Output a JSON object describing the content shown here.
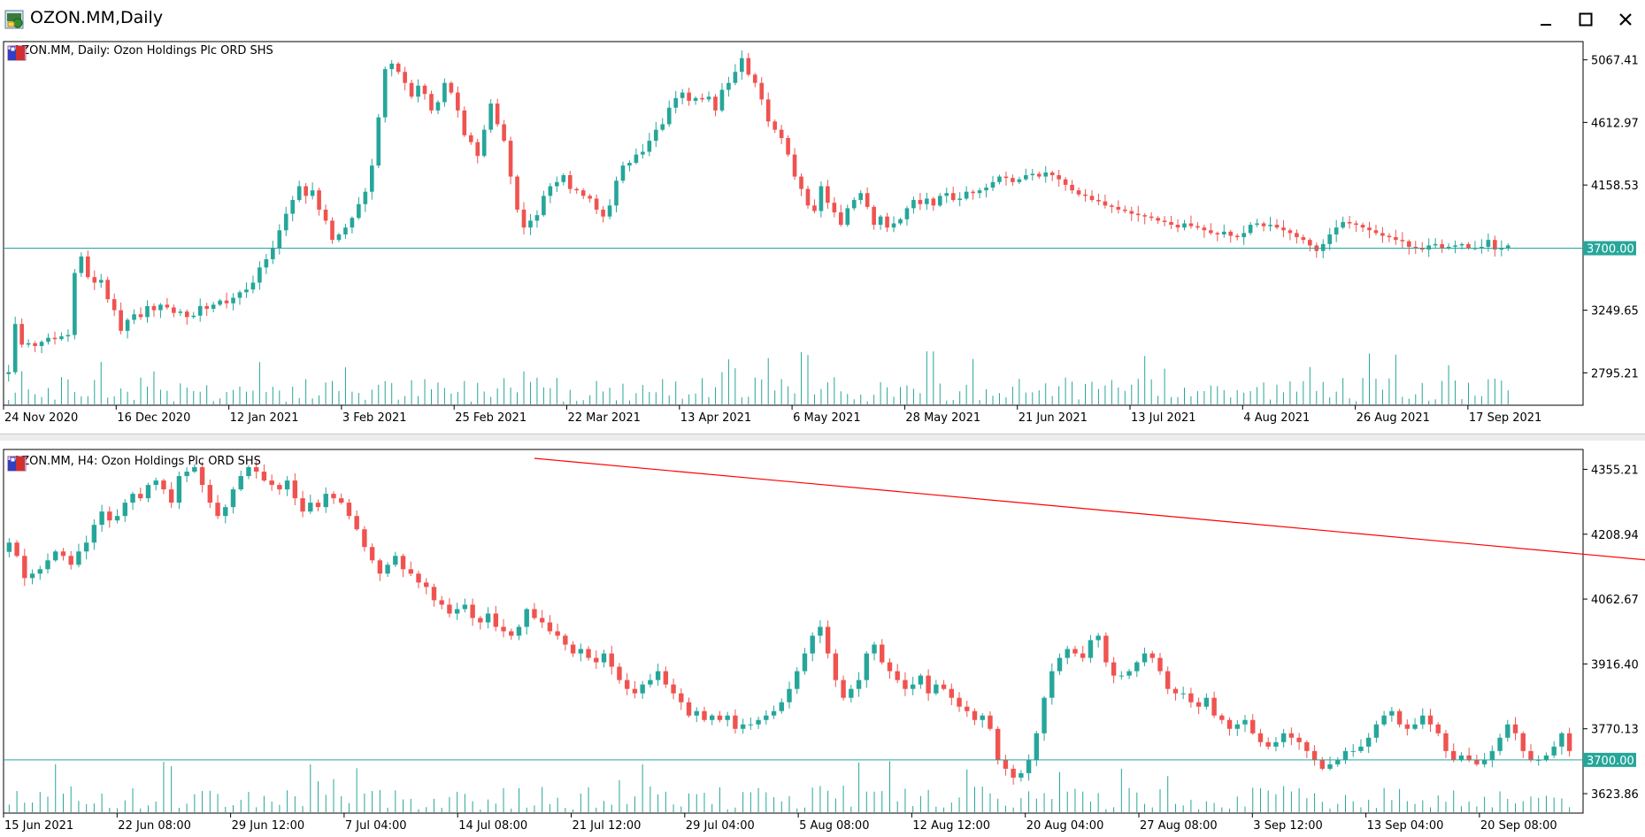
{
  "window": {
    "title": "OZON.MM,Daily",
    "icon": "terminal-chart-icon",
    "buttons": [
      {
        "name": "minimize-button",
        "label": "▁",
        "icon": "minimize-icon"
      },
      {
        "name": "maximize-button",
        "label": "☐",
        "icon": "maximize-icon"
      },
      {
        "name": "close-button",
        "label": "✕",
        "icon": "close-icon"
      }
    ]
  },
  "colors": {
    "bull": "#26a69a",
    "bear": "#ef5350",
    "hline": "#26a69a",
    "trendline": "#ff0000",
    "volume": "#26a69a",
    "price_tag_bg": "#26a69a"
  },
  "daily": {
    "label": "OZON.MM, Daily:  Ozon Holdings Plc ORD SHS",
    "price_ticks": [
      "5067.41",
      "4612.97",
      "4158.53",
      "3249.65",
      "2795.21"
    ],
    "hline_label": "3700.00",
    "date_labels": [
      "24 Nov 2020",
      "16 Dec 2020",
      "12 Jan 2021",
      "3 Feb 2021",
      "25 Feb 2021",
      "22 Mar 2021",
      "13 Apr 2021",
      "6 May 2021",
      "28 May 2021",
      "21 Jun 2021",
      "13 Jul 2021",
      "4 Aug 2021",
      "26 Aug 2021",
      "17 Sep 2021"
    ]
  },
  "h4": {
    "label": "OZON.MM, H4:  Ozon Holdings Plc ORD SHS",
    "price_ticks": [
      "4355.21",
      "4208.94",
      "4062.67",
      "3916.40",
      "3770.13",
      "3623.86"
    ],
    "hline_label": "3700.00",
    "date_labels": [
      "15 Jun 2021",
      "22 Jun 08:00",
      "29 Jun 12:00",
      "7 Jul 04:00",
      "14 Jul 08:00",
      "21 Jul 12:00",
      "29 Jul 04:00",
      "5 Aug 08:00",
      "12 Aug 12:00",
      "20 Aug 04:00",
      "27 Aug 08:00",
      "3 Sep 12:00",
      "13 Sep 04:00",
      "20 Sep 08:00"
    ]
  },
  "chart_data": [
    {
      "type": "candlestick",
      "title": "OZON.MM, Daily:  Ozon Holdings Plc ORD SHS",
      "ylim": [
        2560,
        5200
      ],
      "hline": 3700,
      "closes": [
        2800,
        3150,
        3000,
        3010,
        2990,
        3020,
        3050,
        3040,
        3060,
        3070,
        3520,
        3640,
        3490,
        3450,
        3470,
        3330,
        3250,
        3100,
        3180,
        3220,
        3200,
        3280,
        3250,
        3290,
        3270,
        3230,
        3240,
        3200,
        3210,
        3280,
        3260,
        3290,
        3320,
        3300,
        3340,
        3380,
        3400,
        3450,
        3560,
        3620,
        3700,
        3830,
        3950,
        4050,
        4150,
        4080,
        4120,
        3980,
        3900,
        3760,
        3800,
        3850,
        3920,
        4020,
        4110,
        4300,
        4650,
        5000,
        5040,
        4980,
        4900,
        4800,
        4880,
        4820,
        4700,
        4760,
        4900,
        4830,
        4700,
        4520,
        4470,
        4370,
        4560,
        4750,
        4600,
        4480,
        4220,
        3980,
        3850,
        3900,
        3940,
        4080,
        4150,
        4180,
        4230,
        4130,
        4120,
        4080,
        4060,
        3980,
        3930,
        4010,
        4190,
        4300,
        4320,
        4380,
        4400,
        4480,
        4560,
        4600,
        4720,
        4790,
        4830,
        4770,
        4790,
        4780,
        4800,
        4700,
        4850,
        4900,
        4980,
        5080,
        4960,
        4900,
        4780,
        4620,
        4560,
        4500,
        4380,
        4220,
        4130,
        4010,
        3970,
        4150,
        4030,
        3960,
        3870,
        3990,
        4050,
        4100,
        4000,
        3870,
        3930,
        3850,
        3880,
        3910,
        3990,
        4050,
        4020,
        4060,
        4010,
        4080,
        4100,
        4050,
        4060,
        4110,
        4100,
        4120,
        4140,
        4180,
        4220,
        4210,
        4180,
        4200,
        4230,
        4240,
        4220,
        4250,
        4230,
        4200,
        4160,
        4120,
        4090,
        4080,
        4050,
        4040,
        4010,
        4000,
        3980,
        3970,
        3950,
        3940,
        3930,
        3920,
        3900,
        3890,
        3870,
        3850,
        3880,
        3860,
        3850,
        3830,
        3810,
        3800,
        3820,
        3790,
        3780,
        3810,
        3870,
        3880,
        3860,
        3870,
        3850,
        3830,
        3810,
        3780,
        3760,
        3720,
        3680,
        3730,
        3800,
        3850,
        3890,
        3880,
        3870,
        3850,
        3830,
        3810,
        3790,
        3780,
        3760,
        3750,
        3710,
        3700,
        3690,
        3720,
        3730,
        3700,
        3710,
        3720,
        3730,
        3700,
        3700,
        3710,
        3760,
        3690,
        3700,
        3720
      ]
    },
    {
      "type": "candlestick",
      "title": "OZON.MM, H4:  Ozon Holdings Plc ORD SHS",
      "ylim": [
        3580,
        4400
      ],
      "hline": 3700,
      "trendline": {
        "from_bar": 68,
        "from_value": 4380,
        "to_bar": 445,
        "to_value": 3780
      },
      "closes": [
        4190,
        4160,
        4110,
        4120,
        4130,
        4150,
        4170,
        4160,
        4140,
        4170,
        4190,
        4230,
        4260,
        4240,
        4250,
        4280,
        4300,
        4290,
        4320,
        4330,
        4310,
        4280,
        4340,
        4350,
        4360,
        4320,
        4280,
        4250,
        4270,
        4310,
        4340,
        4360,
        4350,
        4330,
        4320,
        4310,
        4330,
        4290,
        4260,
        4280,
        4270,
        4300,
        4290,
        4280,
        4250,
        4220,
        4180,
        4150,
        4120,
        4140,
        4160,
        4130,
        4120,
        4100,
        4090,
        4060,
        4050,
        4030,
        4040,
        4050,
        4020,
        4010,
        4030,
        4000,
        3990,
        3980,
        4000,
        4040,
        4020,
        4010,
        3990,
        3980,
        3960,
        3940,
        3950,
        3930,
        3920,
        3940,
        3910,
        3880,
        3860,
        3850,
        3870,
        3880,
        3900,
        3870,
        3850,
        3830,
        3800,
        3810,
        3790,
        3800,
        3790,
        3800,
        3770,
        3780,
        3780,
        3790,
        3800,
        3810,
        3830,
        3860,
        3900,
        3940,
        3980,
        4000,
        3940,
        3880,
        3840,
        3860,
        3880,
        3940,
        3960,
        3920,
        3900,
        3880,
        3860,
        3870,
        3890,
        3850,
        3870,
        3860,
        3840,
        3820,
        3810,
        3790,
        3800,
        3770,
        3700,
        3680,
        3660,
        3670,
        3700,
        3760,
        3840,
        3900,
        3930,
        3950,
        3940,
        3930,
        3970,
        3980,
        3920,
        3890,
        3890,
        3900,
        3920,
        3940,
        3930,
        3900,
        3860,
        3850,
        3850,
        3830,
        3820,
        3840,
        3800,
        3790,
        3770,
        3780,
        3790,
        3760,
        3740,
        3730,
        3740,
        3760,
        3750,
        3740,
        3720,
        3700,
        3680,
        3690,
        3700,
        3720,
        3720,
        3730,
        3750,
        3780,
        3800,
        3810,
        3780,
        3770,
        3780,
        3800,
        3780,
        3760,
        3720,
        3700,
        3710,
        3700,
        3690,
        3700,
        3720,
        3750,
        3780,
        3760,
        3720,
        3700,
        3700,
        3710,
        3730,
        3760,
        3720
      ]
    }
  ]
}
